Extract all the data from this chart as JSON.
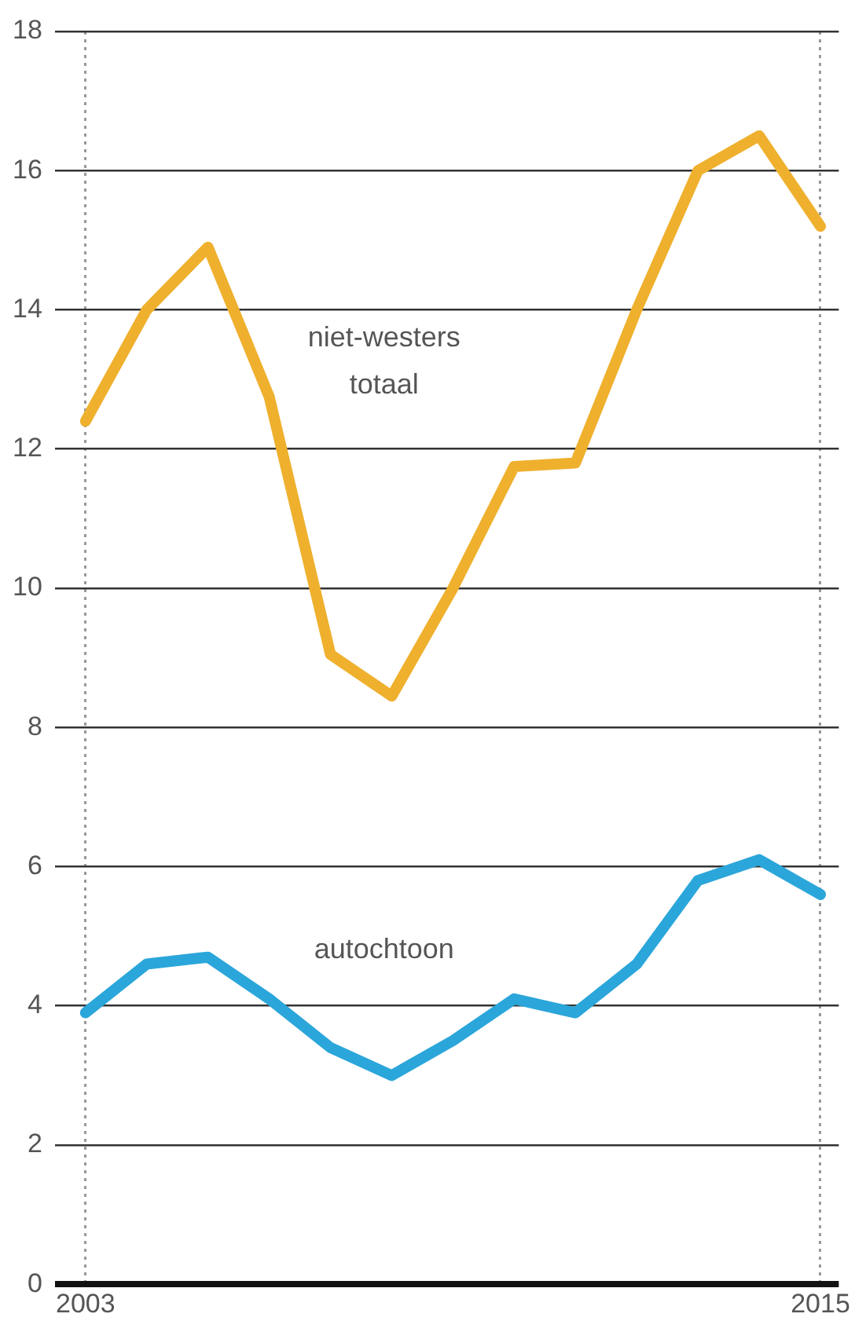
{
  "chart_data": {
    "type": "line",
    "x": [
      2003,
      2004,
      2005,
      2006,
      2007,
      2008,
      2009,
      2010,
      2011,
      2012,
      2013,
      2014,
      2015
    ],
    "series": [
      {
        "name": "niet-westers totaal",
        "color": "#efb02e",
        "values": [
          12.4,
          14.0,
          14.9,
          12.75,
          9.05,
          8.45,
          10.0,
          11.75,
          11.8,
          14.0,
          16.0,
          16.5,
          15.2
        ]
      },
      {
        "name": "autochtoon",
        "color": "#2ba6da",
        "values": [
          3.9,
          4.6,
          4.7,
          4.1,
          3.4,
          3.0,
          3.5,
          4.1,
          3.9,
          4.6,
          5.8,
          6.1,
          5.6
        ]
      }
    ],
    "xlim": [
      2002.5,
      2015.3
    ],
    "xticks": [
      2003,
      2015
    ],
    "ylim": [
      0,
      18
    ],
    "yticks": [
      0,
      2,
      4,
      6,
      8,
      10,
      12,
      14,
      16,
      18
    ],
    "grid": true,
    "legend": false,
    "marker": "none",
    "line_style": "solid"
  }
}
